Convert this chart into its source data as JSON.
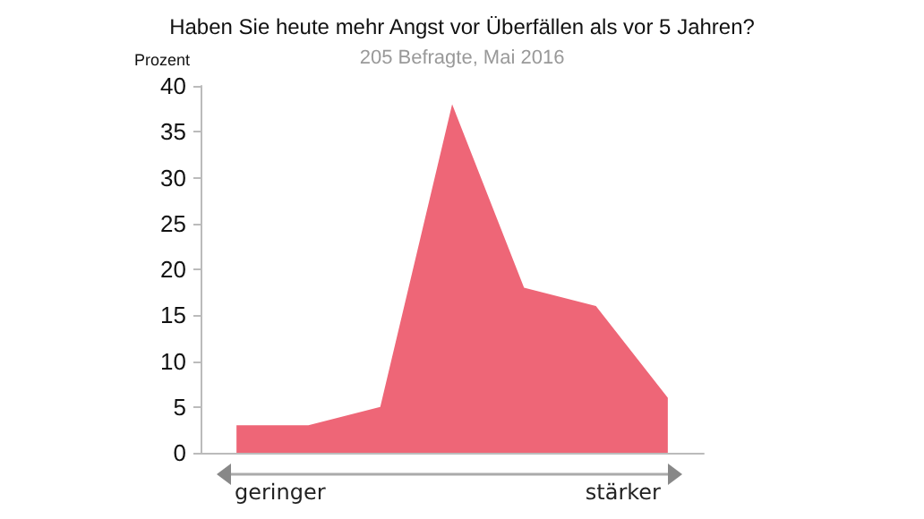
{
  "chart_data": {
    "type": "area",
    "title": "Haben Sie heute mehr Angst vor Überfällen als vor 5 Jahren?",
    "subtitle": "205 Befragte, Mai 2016",
    "ylabel": "Prozent",
    "categories": [
      null,
      null,
      null,
      null,
      null,
      null,
      null
    ],
    "values": [
      3,
      3,
      5,
      38,
      18,
      16,
      6
    ],
    "color": "#ee6677",
    "ylim": [
      0,
      40
    ],
    "yticks": [
      0,
      5,
      10,
      15,
      20,
      25,
      30,
      35,
      40
    ],
    "grid": false,
    "marker": "none",
    "annotations": [
      "geringer",
      "stärker"
    ]
  }
}
